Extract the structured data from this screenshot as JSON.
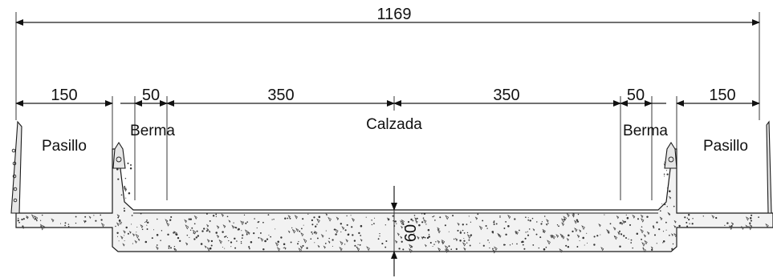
{
  "dimensions": {
    "total": "1169",
    "left_walkway": "150",
    "left_shoulder": "50",
    "left_lane": "350",
    "right_lane": "350",
    "right_shoulder": "50",
    "right_walkway": "150",
    "slab_depth": "60"
  },
  "labels": {
    "left_walkway": "Pasillo",
    "left_shoulder": "Berma",
    "roadway": "Calzada",
    "right_shoulder": "Berma",
    "right_walkway": "Pasillo"
  }
}
